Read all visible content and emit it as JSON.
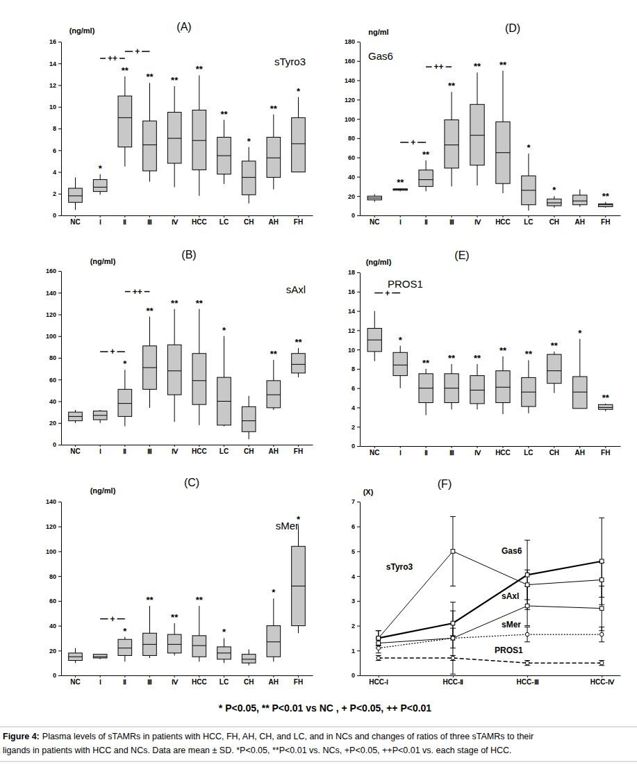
{
  "chart_data": [
    {
      "type": "box",
      "title": "(A)",
      "label": "sTyro3",
      "ylabel": "(ng/ml)",
      "color": "#c8c8c8",
      "categories": [
        "NC",
        "Ⅰ",
        "Ⅱ",
        "Ⅲ",
        "Ⅳ",
        "HCC",
        "LC",
        "CH",
        "AH",
        "FH"
      ],
      "low": [
        0.5,
        1.9,
        4.5,
        3.1,
        2.6,
        1.8,
        2.9,
        1.1,
        2.4,
        4.0
      ],
      "q1": [
        1.2,
        2.2,
        6.3,
        4.1,
        4.8,
        4.2,
        3.8,
        1.9,
        3.5,
        4.0
      ],
      "median": [
        1.8,
        2.6,
        9.0,
        6.5,
        7.1,
        6.9,
        5.5,
        3.5,
        5.3,
        6.6
      ],
      "q3": [
        2.5,
        3.3,
        11.0,
        8.7,
        9.5,
        9.7,
        7.2,
        5.0,
        7.2,
        9.0
      ],
      "high": [
        3.5,
        3.8,
        12.8,
        12.2,
        11.9,
        12.9,
        8.8,
        6.3,
        9.3,
        10.9
      ],
      "significance": [
        null,
        "*",
        "**",
        "**",
        "**",
        "**",
        "**",
        "*",
        "**",
        "*"
      ],
      "brackets": [
        {
          "from": "Ⅰ",
          "to": "Ⅱ",
          "label": "++"
        },
        {
          "from": "Ⅱ",
          "to": "Ⅲ",
          "label": "+"
        }
      ],
      "ylim": [
        0,
        16
      ],
      "yticks": [
        0,
        2,
        4,
        6,
        8,
        10,
        12,
        14,
        16
      ]
    },
    {
      "type": "box",
      "title": "(B)",
      "label": "sAxl",
      "ylabel": "(ng/ml)",
      "color": "#c8c8c8",
      "categories": [
        "NC",
        "Ⅰ",
        "Ⅱ",
        "Ⅲ",
        "Ⅳ",
        "HCC",
        "LC",
        "CH",
        "AH",
        "FH"
      ],
      "low": [
        20,
        20,
        17,
        34,
        21,
        18,
        17,
        5,
        32,
        62
      ],
      "q1": [
        22,
        23,
        26,
        51,
        46,
        37,
        18,
        12,
        34,
        66
      ],
      "median": [
        26,
        27,
        38,
        71,
        68,
        59,
        40,
        22,
        46,
        74
      ],
      "q3": [
        30,
        31,
        51,
        91,
        92,
        84,
        62,
        35,
        59,
        84
      ],
      "high": [
        32,
        32,
        69,
        118,
        125,
        125,
        100,
        45,
        78,
        89
      ],
      "significance": [
        null,
        null,
        "*",
        "**",
        "**",
        "**",
        "*",
        null,
        "**",
        "**"
      ],
      "brackets": [
        {
          "from": "Ⅰ",
          "to": "Ⅱ",
          "label": "+"
        },
        {
          "from": "Ⅱ",
          "to": "Ⅲ",
          "label": "++"
        }
      ],
      "ylim": [
        0,
        160
      ],
      "yticks": [
        0,
        20,
        40,
        60,
        80,
        100,
        120,
        140,
        160
      ]
    },
    {
      "type": "box",
      "title": "(C)",
      "label": "sMer",
      "ylabel": "(ng/ml)",
      "color": "#c8c8c8",
      "categories": [
        "NC",
        "Ⅰ",
        "Ⅱ",
        "Ⅲ",
        "Ⅳ",
        "HCC",
        "LC",
        "CH",
        "AH",
        "FH"
      ],
      "low": [
        10,
        13,
        11,
        14,
        16,
        11,
        10,
        8,
        11,
        34
      ],
      "q1": [
        12,
        14,
        16,
        16,
        18,
        15,
        13,
        10,
        15,
        40
      ],
      "median": [
        15,
        15,
        22,
        25,
        25,
        24,
        18,
        13,
        27,
        72
      ],
      "q3": [
        18,
        17,
        29,
        34,
        33,
        32,
        23,
        17,
        40,
        104
      ],
      "high": [
        22,
        17,
        31,
        56,
        42,
        56,
        30,
        21,
        62,
        121
      ],
      "significance": [
        null,
        null,
        "*",
        "**",
        "**",
        "**",
        "*",
        null,
        "*",
        "*"
      ],
      "brackets": [
        {
          "from": "Ⅰ",
          "to": "Ⅱ",
          "label": "+"
        }
      ],
      "ylim": [
        0,
        140
      ],
      "yticks": [
        0,
        20,
        40,
        60,
        80,
        100,
        120,
        140
      ]
    },
    {
      "type": "box",
      "title": "(D)",
      "label": "Gas6",
      "ylabel": "ng/ml",
      "color": "#c8c8c8",
      "categories": [
        "NC",
        "Ⅰ",
        "Ⅱ",
        "Ⅲ",
        "Ⅳ",
        "HCC",
        "LC",
        "CH",
        "AH",
        "FH"
      ],
      "low": [
        14,
        25,
        25,
        30,
        31,
        23,
        5,
        8,
        9,
        8
      ],
      "q1": [
        16,
        26,
        30,
        49,
        52,
        33,
        11,
        10,
        11,
        9
      ],
      "median": [
        18,
        27,
        37,
        73,
        83,
        65,
        26,
        13,
        15,
        11
      ],
      "q3": [
        20,
        27.5,
        47,
        99,
        115,
        97,
        41,
        17,
        21,
        12
      ],
      "high": [
        22,
        28,
        57,
        128,
        148,
        150,
        64,
        20,
        27,
        14
      ],
      "significance": [
        null,
        "**",
        "**",
        "**",
        "**",
        "**",
        "*",
        "*",
        null,
        "**"
      ],
      "brackets": [
        {
          "from": "Ⅰ",
          "to": "Ⅱ",
          "label": "+"
        },
        {
          "from": "Ⅱ",
          "to": "Ⅲ",
          "label": "++"
        }
      ],
      "ylim": [
        0,
        180
      ],
      "yticks": [
        0,
        20,
        40,
        60,
        80,
        100,
        120,
        140,
        160,
        180
      ]
    },
    {
      "type": "box",
      "title": "(E)",
      "label": "PROS1",
      "ylabel": "(ng/ml)",
      "color": "#c8c8c8",
      "categories": [
        "NC",
        "Ⅰ",
        "Ⅱ",
        "Ⅲ",
        "Ⅳ",
        "HCC",
        "LC",
        "CH",
        "AH",
        "FH"
      ],
      "low": [
        8.8,
        6.0,
        3.2,
        3.8,
        3.8,
        3.3,
        3.4,
        5.5,
        3.9,
        3.6
      ],
      "q1": [
        9.8,
        7.3,
        4.5,
        4.5,
        4.4,
        4.5,
        4.1,
        6.5,
        3.9,
        3.8
      ],
      "median": [
        11.0,
        8.4,
        6.0,
        6.0,
        5.8,
        6.1,
        5.6,
        7.8,
        5.6,
        4.0
      ],
      "q3": [
        12.2,
        9.7,
        7.5,
        7.5,
        7.3,
        7.8,
        7.1,
        9.5,
        7.2,
        4.3
      ],
      "high": [
        14.0,
        10.4,
        8.0,
        8.5,
        8.5,
        9.3,
        8.9,
        9.8,
        11.1,
        4.4
      ],
      "significance": [
        null,
        "*",
        "**",
        "**",
        "**",
        "**",
        "**",
        "**",
        "*",
        "**"
      ],
      "brackets": [
        {
          "from": "NC",
          "to": "Ⅰ",
          "label": "+"
        }
      ],
      "ylim": [
        0,
        18
      ],
      "yticks": [
        0,
        2,
        4,
        6,
        8,
        10,
        12,
        14,
        16,
        18
      ]
    },
    {
      "type": "line",
      "title": "(F)",
      "ylabel": "(X)",
      "categories": [
        "HCC-Ⅰ",
        "HCC-Ⅱ",
        "HCC-Ⅲ",
        "HCC-Ⅳ"
      ],
      "series": [
        {
          "name": "sTyro3",
          "color": "#000000",
          "marker": "square",
          "line_style": "solid",
          "values": [
            1.5,
            5.0,
            3.65,
            3.85
          ],
          "errors": [
            0.3,
            1.4,
            0.6,
            0.7
          ]
        },
        {
          "name": "Gas6",
          "color": "#000000",
          "marker": "square",
          "line_style": "thick",
          "values": [
            1.5,
            2.1,
            4.05,
            4.6
          ],
          "errors": [
            0.3,
            0.5,
            1.4,
            1.75
          ]
        },
        {
          "name": "sAxl",
          "color": "#000000",
          "marker": "square",
          "line_style": "solid",
          "values": [
            1.3,
            1.5,
            2.8,
            2.7
          ],
          "errors": [
            0.2,
            0.4,
            0.8,
            0.9
          ]
        },
        {
          "name": "sMer",
          "color": "#000000",
          "marker": "circle",
          "line_style": "dotted",
          "values": [
            1.1,
            1.5,
            1.65,
            1.65
          ],
          "errors": [
            0.2,
            1.45,
            0.3,
            0.3
          ]
        },
        {
          "name": "PROS1",
          "color": "#000000",
          "marker": "circle",
          "line_style": "dashed",
          "values": [
            0.7,
            0.7,
            0.5,
            0.5
          ],
          "errors": [
            0.1,
            0.1,
            0.1,
            0.1
          ]
        }
      ],
      "ylim": [
        0,
        7
      ],
      "yticks": [
        0,
        1,
        2,
        3,
        4,
        5,
        6,
        7
      ]
    }
  ],
  "footnote": "* P<0.05, ** P<0.01 vs NC , + P<0.05, ++ P<0.01",
  "caption": {
    "label": "Figure 4:",
    "lines": [
      "Plasma levels of sTAMRs in patients with HCC, FH, AH, CH, and LC, and in NCs and changes of ratios of three sTAMRs to their",
      "ligands in patients with HCC and NCs. Data are mean ± SD. *P<0.05, **P<0.01 vs. NCs, +P<0.05, ++P<0.01 vs. each stage of HCC."
    ]
  }
}
